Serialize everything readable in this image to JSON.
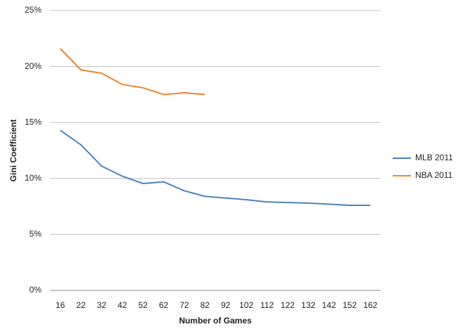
{
  "chart_data": {
    "type": "line",
    "x_label": "Number of Games",
    "y_label": "Gini Coefficient",
    "categories": [
      "16",
      "22",
      "32",
      "42",
      "52",
      "62",
      "72",
      "82",
      "92",
      "102",
      "112",
      "122",
      "132",
      "142",
      "152",
      "162"
    ],
    "series": [
      {
        "name": "MLB 2011",
        "color": "#4f81bd",
        "values": [
          14.3,
          13.0,
          11.1,
          10.2,
          9.55,
          9.7,
          8.9,
          8.4,
          8.25,
          8.1,
          7.9,
          7.85,
          7.8,
          7.7,
          7.6,
          7.6
        ]
      },
      {
        "name": "NBA 2011",
        "color": "#e8862a",
        "values": [
          21.6,
          19.7,
          19.4,
          18.4,
          18.1,
          17.5,
          17.65,
          17.5,
          null,
          null,
          null,
          null,
          null,
          null,
          null,
          null
        ]
      }
    ],
    "ylim": [
      0,
      25
    ],
    "yticks": [
      {
        "value": 0,
        "label": "0%"
      },
      {
        "value": 5,
        "label": "5%"
      },
      {
        "value": 10,
        "label": "10%"
      },
      {
        "value": 15,
        "label": "15%"
      },
      {
        "value": 20,
        "label": "20%"
      },
      {
        "value": 25,
        "label": "25%"
      }
    ],
    "grid": true,
    "legend": "right"
  }
}
